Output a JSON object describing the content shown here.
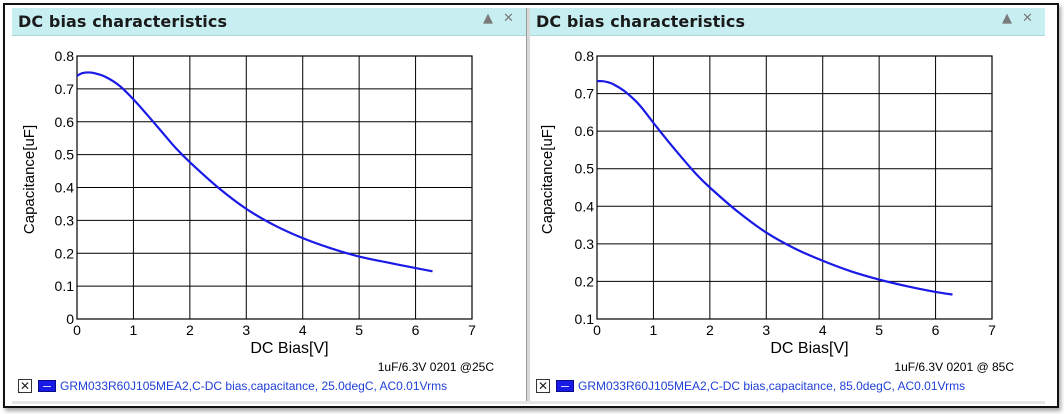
{
  "panels": [
    {
      "title": "DC bias characteristics",
      "minimize_icon": "minimize-triangle-icon",
      "close_icon": "close-x-icon",
      "legend": {
        "close_glyph": "✕",
        "text": "GRM033R60J105MEA2,C-DC bias,capacitance, 25.0degC, AC0.01Vrms"
      }
    },
    {
      "title": "DC bias characteristics",
      "minimize_icon": "minimize-triangle-icon",
      "close_icon": "close-x-icon",
      "legend": {
        "close_glyph": "✕",
        "text": "GRM033R60J105MEA2,C-DC bias,capacitance, 85.0degC, AC0.01Vrms"
      }
    }
  ],
  "chart_data": [
    {
      "type": "line",
      "xlabel": "DC Bias[V]",
      "ylabel": "Capacitance[uF]",
      "annotation": "1uF/6.3V 0201 @25C",
      "xlim": [
        0,
        7
      ],
      "ylim": [
        0,
        0.8
      ],
      "xticks": [
        0,
        1,
        2,
        3,
        4,
        5,
        6,
        7
      ],
      "yticks": [
        0,
        0.1,
        0.2,
        0.3,
        0.4,
        0.5,
        0.6,
        0.7,
        0.8
      ],
      "ytick_labels": [
        "0",
        "0.1",
        "0.2",
        "0.3",
        "0.4",
        "0.5",
        "0.6",
        "0.7",
        "0.8"
      ],
      "grid": true,
      "line_color": "#1a1ae6",
      "series": [
        {
          "x": [
            0,
            0.1,
            0.2,
            0.3,
            0.5,
            0.75,
            1.0,
            1.25,
            1.5,
            1.75,
            2.0,
            2.5,
            3.0,
            3.5,
            4.0,
            4.5,
            5.0,
            5.5,
            6.0,
            6.3
          ],
          "values": [
            0.74,
            0.748,
            0.75,
            0.748,
            0.737,
            0.71,
            0.668,
            0.62,
            0.57,
            0.52,
            0.477,
            0.4,
            0.335,
            0.285,
            0.246,
            0.215,
            0.19,
            0.172,
            0.155,
            0.145
          ]
        }
      ]
    },
    {
      "type": "line",
      "xlabel": "DC Bias[V]",
      "ylabel": "Capacitance[uF]",
      "annotation": "1uF/6.3V 0201 @ 85C",
      "xlim": [
        0,
        7
      ],
      "ylim": [
        0.1,
        0.8
      ],
      "xticks": [
        0,
        1,
        2,
        3,
        4,
        5,
        6,
        7
      ],
      "yticks": [
        0.1,
        0.2,
        0.3,
        0.4,
        0.5,
        0.6,
        0.7,
        0.8
      ],
      "ytick_labels": [
        "0.1",
        "0.2",
        "0.3",
        "0.4",
        "0.5",
        "0.6",
        "0.7",
        "0.8"
      ],
      "grid": true,
      "line_color": "#1a1ae6",
      "series": [
        {
          "x": [
            0,
            0.1,
            0.2,
            0.3,
            0.5,
            0.75,
            1.0,
            1.25,
            1.5,
            1.75,
            2.0,
            2.5,
            3.0,
            3.5,
            4.0,
            4.5,
            5.0,
            5.5,
            6.0,
            6.3
          ],
          "values": [
            0.733,
            0.733,
            0.73,
            0.724,
            0.705,
            0.67,
            0.622,
            0.575,
            0.53,
            0.487,
            0.45,
            0.385,
            0.33,
            0.288,
            0.255,
            0.227,
            0.205,
            0.187,
            0.172,
            0.165
          ]
        }
      ]
    }
  ]
}
